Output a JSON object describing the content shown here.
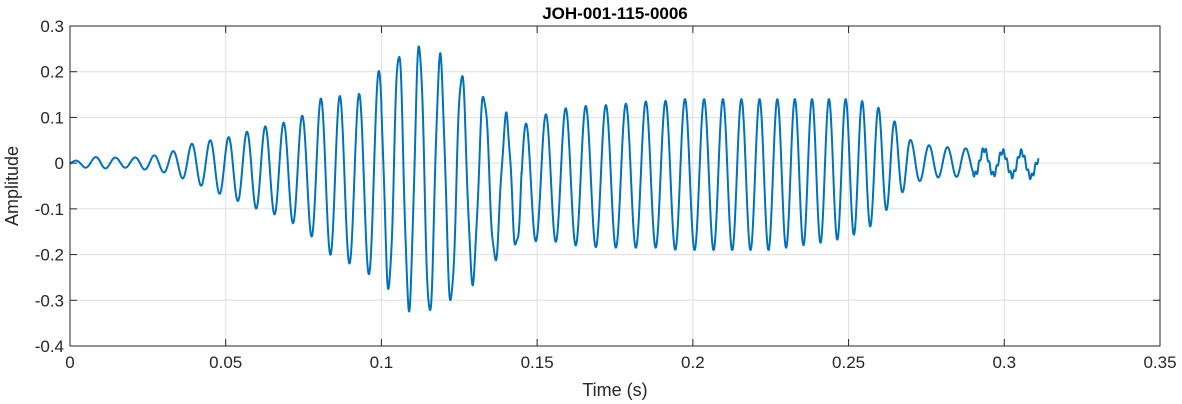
{
  "colors": {
    "series": "#0072BD",
    "grid": "#dfdfdf",
    "axis": "#262626",
    "background": "#ffffff"
  },
  "chart_data": {
    "type": "line",
    "title": "JOH-001-115-0006",
    "xlabel": "Time (s)",
    "ylabel": "Amplitude",
    "xlim": [
      0,
      0.35
    ],
    "ylim": [
      -0.4,
      0.3
    ],
    "grid": true,
    "x_ticks": [
      0,
      0.05,
      0.1,
      0.15,
      0.2,
      0.25,
      0.3,
      0.35
    ],
    "x_tick_labels": [
      "0",
      "0.05",
      "0.1",
      "0.15",
      "0.2",
      "0.25",
      "0.3",
      "0.35"
    ],
    "y_ticks": [
      0.3,
      0.2,
      0.1,
      0,
      -0.1,
      -0.2,
      -0.3,
      -0.4
    ],
    "y_tick_labels": [
      "0.3",
      "0.2",
      "0.1",
      "0",
      "-0.1",
      "-0.2",
      "-0.3",
      "-0.4"
    ],
    "series": [
      {
        "x": [
          0,
          0.005,
          0.01,
          0.015,
          0.02,
          0.025,
          0.03,
          0.035,
          0.04,
          0.045,
          0.05,
          0.055,
          0.06,
          0.065,
          0.07,
          0.075,
          0.08,
          0.085,
          0.09,
          0.095,
          0.1,
          0.105,
          0.11,
          0.115,
          0.12,
          0.125,
          0.13,
          0.135,
          0.14,
          0.145,
          0.15,
          0.155,
          0.16,
          0.165,
          0.17,
          0.175,
          0.18,
          0.185,
          0.19,
          0.195,
          0.2,
          0.205,
          0.21,
          0.215,
          0.22,
          0.225,
          0.23,
          0.235,
          0.24,
          0.245,
          0.25,
          0.255,
          0.26,
          0.265,
          0.27,
          0.275,
          0.28,
          0.285,
          0.29,
          0.295,
          0.3,
          0.305,
          0.31,
          0.311
        ],
        "y_max": [
          0.003,
          0.01,
          0.015,
          0.012,
          0.012,
          0.015,
          0.02,
          0.03,
          0.045,
          0.05,
          0.055,
          0.065,
          0.075,
          0.085,
          0.09,
          0.105,
          0.14,
          0.15,
          0.14,
          0.16,
          0.21,
          0.24,
          0.25,
          0.26,
          0.22,
          0.2,
          0.16,
          0.14,
          0.1,
          0.085,
          0.09,
          0.12,
          0.12,
          0.125,
          0.125,
          0.13,
          0.13,
          0.135,
          0.135,
          0.14,
          0.14,
          0.14,
          0.14,
          0.14,
          0.14,
          0.14,
          0.14,
          0.14,
          0.14,
          0.14,
          0.14,
          0.135,
          0.12,
          0.09,
          0.05,
          0.04,
          0.035,
          0.035,
          0.03,
          0.03,
          0.025,
          0.025,
          0.02,
          0.01
        ],
        "y_min": [
          -0.005,
          -0.01,
          -0.012,
          -0.01,
          -0.01,
          -0.015,
          -0.02,
          -0.03,
          -0.045,
          -0.055,
          -0.075,
          -0.085,
          -0.1,
          -0.11,
          -0.125,
          -0.145,
          -0.175,
          -0.21,
          -0.22,
          -0.24,
          -0.255,
          -0.29,
          -0.32,
          -0.33,
          -0.31,
          -0.29,
          -0.25,
          -0.22,
          -0.19,
          -0.18,
          -0.17,
          -0.17,
          -0.18,
          -0.18,
          -0.185,
          -0.185,
          -0.185,
          -0.185,
          -0.185,
          -0.19,
          -0.19,
          -0.19,
          -0.19,
          -0.19,
          -0.19,
          -0.19,
          -0.185,
          -0.18,
          -0.175,
          -0.17,
          -0.16,
          -0.15,
          -0.12,
          -0.08,
          -0.045,
          -0.035,
          -0.03,
          -0.03,
          -0.025,
          -0.025,
          -0.025,
          -0.03,
          -0.03,
          -0.025
        ]
      }
    ]
  }
}
